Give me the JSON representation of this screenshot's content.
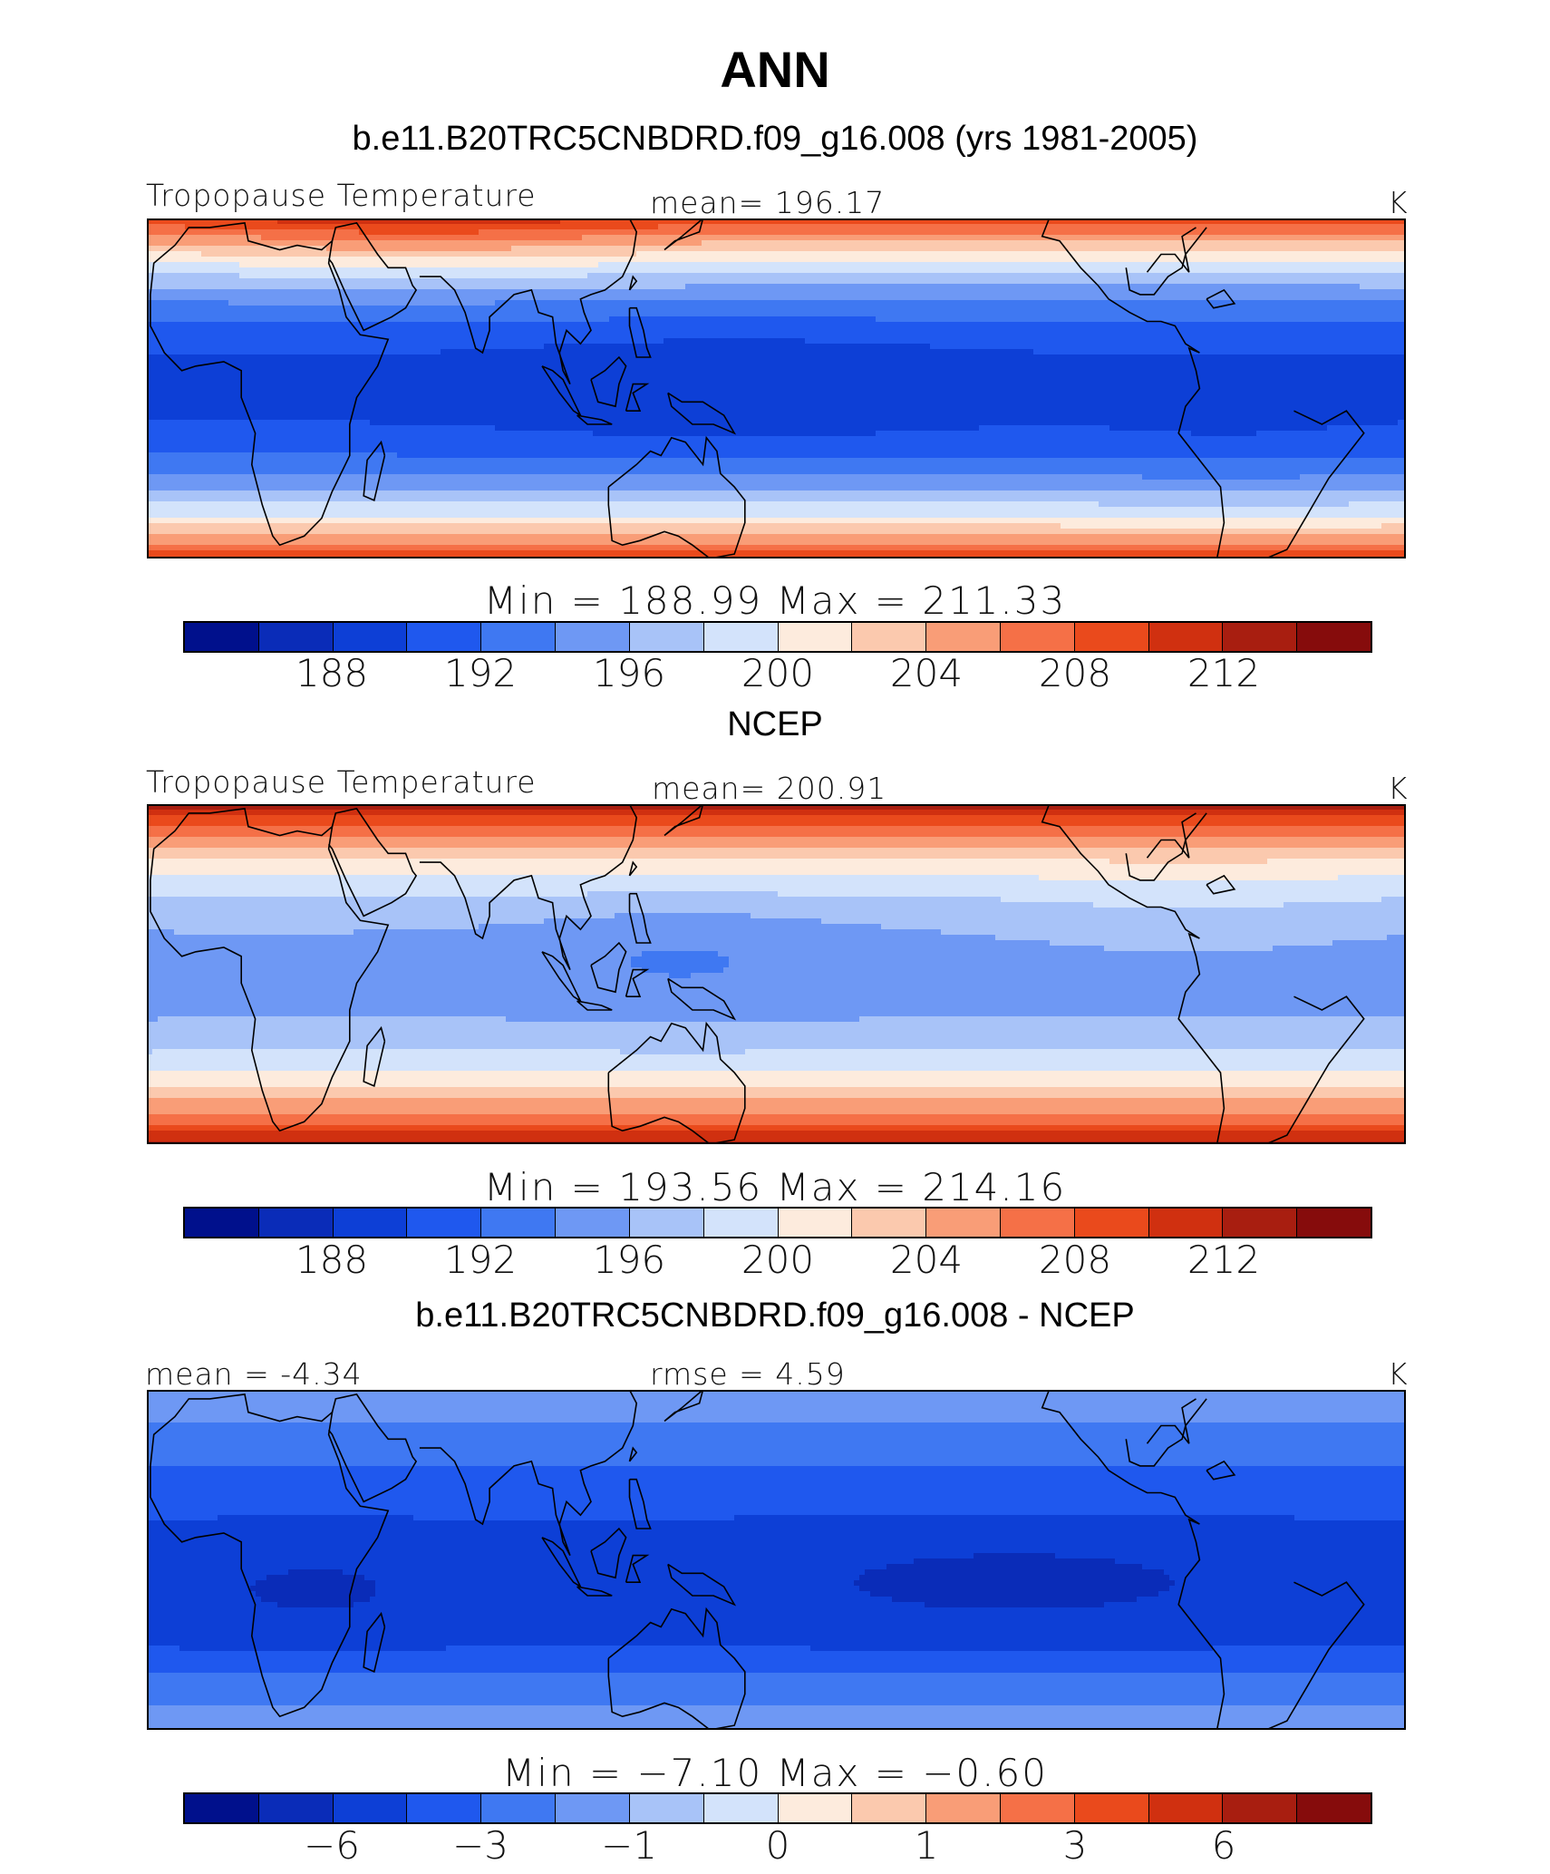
{
  "page": {
    "title": "ANN"
  },
  "panels": [
    {
      "title": "b.e11.B20TRC5CNBDRD.f09_g16.008 (yrs 1981-2005)",
      "left_label": "Tropopause Temperature",
      "mid_label": "mean=  196.17",
      "unit": "K",
      "minmax": "Min  =  188.99  Max  =  211.33",
      "ticks": [
        "188",
        "192",
        "196",
        "200",
        "204",
        "208",
        "212"
      ],
      "field": "model"
    },
    {
      "title": "NCEP",
      "left_label": "Tropopause Temperature",
      "mid_label": "mean=  200.91",
      "unit": "K",
      "minmax": "Min  =  193.56  Max  =  214.16",
      "ticks": [
        "188",
        "192",
        "196",
        "200",
        "204",
        "208",
        "212"
      ],
      "field": "obs"
    },
    {
      "title": "b.e11.B20TRC5CNBDRD.f09_g16.008 - NCEP",
      "left_label": "mean =   -4.34",
      "mid_label": "rmse =     4.59",
      "unit": "K",
      "minmax": "Min  =   −7.10  Max  =    −0.60",
      "ticks": [
        "−6",
        "−3",
        "−1",
        "0",
        "1",
        "3",
        "6"
      ],
      "field": "diff"
    }
  ],
  "colormap": [
    "#00108c",
    "#0a2cb8",
    "#0d3fd6",
    "#1f58ee",
    "#3f78f2",
    "#6e98f4",
    "#a8c3f8",
    "#d3e3fb",
    "#fdebdd",
    "#fbc9ae",
    "#f99d77",
    "#f57047",
    "#ea4a1c",
    "#d03010",
    "#a81e10",
    "#860c0c"
  ]
}
